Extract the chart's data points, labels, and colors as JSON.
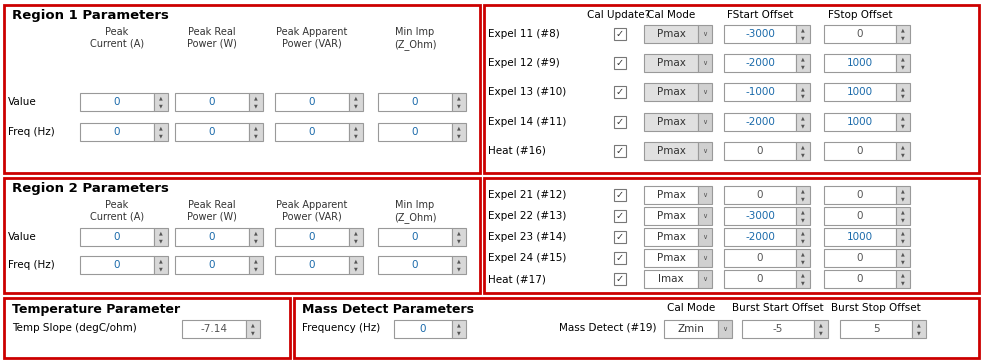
{
  "bg_color": "#ffffff",
  "red_border": "#cc0000",
  "blue_text": "#1a6aaa",
  "region1_title": "Region 1 Parameters",
  "region2_title": "Region 2 Parameters",
  "temp_title": "Temperature Parameter",
  "mass_title": "Mass Detect Parameters",
  "col_headers": [
    "Peak\nCurrent (A)",
    "Peak Real\nPower (W)",
    "Peak Apparent\nPower (VAR)",
    "Min Imp\n(Z_Ohm)"
  ],
  "row_labels": [
    "Value",
    "Freq (Hz)"
  ],
  "right_col_headers": [
    "Cal Update?",
    "Cal Mode",
    "FStart Offset",
    "FStop Offset"
  ],
  "right_rows1": [
    [
      "Expel 11 (#8)",
      true,
      "Pmax",
      "-3000",
      "0",
      false,
      false
    ],
    [
      "Expel 12 (#9)",
      true,
      "Pmax",
      "-2000",
      "1000",
      false,
      true
    ],
    [
      "Expel 13 (#10)",
      true,
      "Pmax",
      "-1000",
      "1000",
      false,
      true
    ],
    [
      "Expel 14 (#11)",
      true,
      "Pmax",
      "-2000",
      "1000",
      false,
      true
    ],
    [
      "Heat (#16)",
      true,
      "Pmax",
      "0",
      "0",
      false,
      false
    ]
  ],
  "right_rows2": [
    [
      "Expel 21 (#12)",
      true,
      "Pmax",
      "0",
      "0",
      false,
      false
    ],
    [
      "Expel 22 (#13)",
      true,
      "Pmax",
      "-3000",
      "0",
      false,
      false
    ],
    [
      "Expel 23 (#14)",
      true,
      "Pmax",
      "-2000",
      "1000",
      false,
      true
    ],
    [
      "Expel 24 (#15)",
      true,
      "Pmax",
      "0",
      "0",
      false,
      false
    ],
    [
      "Heat (#17)",
      true,
      "Imax",
      "0",
      "0",
      false,
      false
    ]
  ],
  "temp_label": "Temp Slope (degC/ohm)",
  "temp_value": "-7.14",
  "freq_label": "Frequency (Hz)",
  "freq_value": "0",
  "bottom_right_row": [
    "Mass Detect (#19)",
    "Zmin",
    "-5",
    "5"
  ]
}
